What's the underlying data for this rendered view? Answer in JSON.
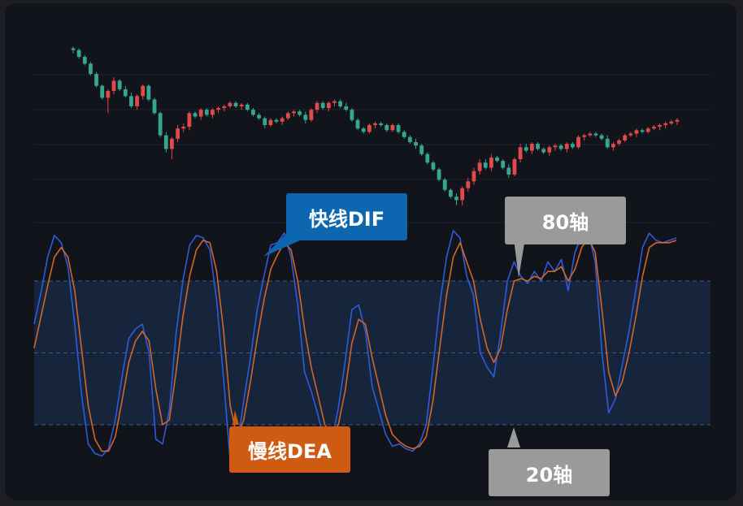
{
  "colors": {
    "background": "#12141c",
    "candle_up": "#e04a4a",
    "candle_down": "#35a78e",
    "dif_line": "#2f5bd8",
    "dea_line": "#d1652a",
    "band_fill": "#172740",
    "band_line": "#3b5a86",
    "dif_callout": "#0d67b0",
    "dea_callout": "#cf5a12",
    "level_callout": "#9a9a9a"
  },
  "callouts": {
    "dif": "快线DIF",
    "dea": "慢线DEA",
    "level_80": "80轴",
    "level_20": "20轴"
  },
  "chart_data": [
    {
      "type": "candlestick",
      "price_range": [
        0,
        100
      ],
      "candles": [
        [
          95,
          96,
          92,
          94
        ],
        [
          94,
          95,
          89,
          90
        ],
        [
          90,
          91,
          85,
          86
        ],
        [
          86,
          87,
          79,
          80
        ],
        [
          80,
          81,
          72,
          73
        ],
        [
          73,
          74,
          65,
          66
        ],
        [
          66,
          71,
          57,
          70
        ],
        [
          70,
          78,
          68,
          76
        ],
        [
          76,
          77,
          70,
          71
        ],
        [
          71,
          73,
          66,
          67
        ],
        [
          67,
          69,
          60,
          61
        ],
        [
          61,
          68,
          59,
          67
        ],
        [
          67,
          74,
          65,
          73
        ],
        [
          73,
          74,
          64,
          65
        ],
        [
          65,
          66,
          56,
          57
        ],
        [
          57,
          58,
          43,
          44
        ],
        [
          44,
          46,
          34,
          36
        ],
        [
          36,
          43,
          30,
          42
        ],
        [
          42,
          50,
          40,
          48
        ],
        [
          48,
          51,
          46,
          49
        ],
        [
          49,
          58,
          47,
          57
        ],
        [
          57,
          58,
          54,
          55
        ],
        [
          55,
          60,
          53,
          59
        ],
        [
          59,
          60,
          55,
          56
        ],
        [
          56,
          60,
          54,
          59
        ],
        [
          59,
          61,
          57,
          60
        ],
        [
          60,
          62,
          58,
          61
        ],
        [
          61,
          64,
          60,
          63
        ],
        [
          63,
          64,
          60,
          61
        ],
        [
          61,
          63,
          59,
          62
        ],
        [
          62,
          63,
          58,
          59
        ],
        [
          59,
          60,
          55,
          56
        ],
        [
          56,
          57,
          53,
          54
        ],
        [
          54,
          55,
          48,
          50
        ],
        [
          50,
          54,
          49,
          53
        ],
        [
          53,
          54,
          51,
          52
        ],
        [
          52,
          55,
          50,
          54
        ],
        [
          54,
          58,
          53,
          57
        ],
        [
          57,
          59,
          55,
          58
        ],
        [
          58,
          59,
          55,
          56
        ],
        [
          56,
          58,
          51,
          53
        ],
        [
          53,
          60,
          52,
          59
        ],
        [
          59,
          64,
          57,
          63
        ],
        [
          63,
          64,
          59,
          60
        ],
        [
          60,
          64,
          58,
          63
        ],
        [
          63,
          65,
          61,
          64
        ],
        [
          64,
          65,
          60,
          61
        ],
        [
          61,
          63,
          58,
          59
        ],
        [
          59,
          60,
          52,
          53
        ],
        [
          53,
          54,
          47,
          48
        ],
        [
          48,
          49,
          45,
          46
        ],
        [
          46,
          51,
          45,
          50
        ],
        [
          50,
          52,
          48,
          51
        ],
        [
          51,
          52,
          49,
          50
        ],
        [
          50,
          51,
          46,
          47
        ],
        [
          47,
          51,
          46,
          50
        ],
        [
          50,
          51,
          45,
          46
        ],
        [
          46,
          47,
          42,
          43
        ],
        [
          43,
          44,
          39,
          40
        ],
        [
          40,
          42,
          36,
          38
        ],
        [
          38,
          39,
          32,
          33
        ],
        [
          33,
          34,
          27,
          28
        ],
        [
          28,
          29,
          23,
          24
        ],
        [
          24,
          25,
          17,
          18
        ],
        [
          18,
          19,
          11,
          12
        ],
        [
          12,
          13,
          7,
          8
        ],
        [
          8,
          10,
          3,
          6
        ],
        [
          6,
          14,
          3,
          13
        ],
        [
          13,
          19,
          11,
          17
        ],
        [
          17,
          25,
          15,
          23
        ],
        [
          23,
          30,
          21,
          28
        ],
        [
          28,
          30,
          24,
          25
        ],
        [
          25,
          33,
          23,
          31
        ],
        [
          31,
          32,
          28,
          29
        ],
        [
          29,
          30,
          24,
          25
        ],
        [
          25,
          27,
          19,
          21
        ],
        [
          21,
          31,
          20,
          30
        ],
        [
          30,
          39,
          28,
          37
        ],
        [
          37,
          39,
          34,
          35
        ],
        [
          35,
          40,
          33,
          39
        ],
        [
          39,
          40,
          35,
          36
        ],
        [
          36,
          37,
          33,
          34
        ],
        [
          34,
          38,
          32,
          37
        ],
        [
          37,
          39,
          35,
          38
        ],
        [
          38,
          39,
          35,
          36
        ],
        [
          36,
          40,
          34,
          39
        ],
        [
          39,
          40,
          36,
          37
        ],
        [
          37,
          44,
          36,
          43
        ],
        [
          43,
          45,
          41,
          44
        ],
        [
          44,
          46,
          43,
          45
        ],
        [
          45,
          46,
          43,
          44
        ],
        [
          44,
          45,
          41,
          42
        ],
        [
          42,
          44,
          36,
          37
        ],
        [
          37,
          40,
          35,
          39
        ],
        [
          39,
          42,
          38,
          41
        ],
        [
          41,
          45,
          40,
          44
        ],
        [
          44,
          46,
          43,
          45
        ],
        [
          45,
          48,
          43,
          47
        ],
        [
          47,
          48,
          45,
          46
        ],
        [
          46,
          49,
          45,
          48
        ],
        [
          48,
          50,
          47,
          49
        ],
        [
          49,
          51,
          47,
          50
        ],
        [
          50,
          52,
          48,
          51
        ],
        [
          51,
          53,
          50,
          52
        ],
        [
          52,
          54,
          50,
          53
        ]
      ]
    },
    {
      "type": "line",
      "y_range": [
        0,
        100
      ],
      "reference_lines": [
        80,
        50,
        20
      ],
      "series": [
        {
          "key": "dif",
          "values": [
            62,
            75,
            90,
            99,
            96,
            86,
            62,
            33,
            12,
            8,
            7,
            10,
            22,
            40,
            56,
            60,
            62,
            50,
            14,
            12,
            26,
            58,
            80,
            95,
            99,
            98,
            93,
            72,
            40,
            5,
            10,
            30,
            48,
            68,
            82,
            95,
            96,
            100,
            90,
            70,
            42,
            34,
            24,
            12,
            13,
            27,
            46,
            68,
            70,
            59,
            36,
            26,
            16,
            11,
            12,
            10,
            9,
            12,
            20,
            44,
            70,
            90,
            101,
            98,
            82,
            74,
            50,
            44,
            40,
            58,
            80,
            88,
            82,
            79,
            84,
            80,
            88,
            84,
            89,
            76,
            92,
            99,
            100,
            88,
            50,
            25,
            31,
            45,
            59,
            76,
            94,
            100,
            97,
            96,
            97,
            98
          ]
        },
        {
          "key": "dea",
          "values": [
            52,
            65,
            78,
            90,
            94,
            90,
            76,
            52,
            28,
            14,
            9,
            9,
            15,
            30,
            46,
            55,
            59,
            55,
            35,
            20,
            22,
            42,
            65,
            82,
            93,
            97,
            96,
            84,
            60,
            28,
            15,
            22,
            38,
            56,
            72,
            85,
            91,
            96,
            93,
            80,
            60,
            44,
            32,
            20,
            16,
            20,
            34,
            54,
            64,
            62,
            48,
            36,
            24,
            16,
            13,
            11,
            10,
            11,
            15,
            30,
            52,
            74,
            90,
            96,
            88,
            80,
            64,
            52,
            46,
            52,
            68,
            80,
            81,
            80,
            82,
            81,
            84,
            84,
            86,
            80,
            85,
            94,
            98,
            92,
            68,
            42,
            32,
            38,
            50,
            65,
            82,
            94,
            96,
            96,
            96,
            97
          ]
        }
      ]
    }
  ]
}
